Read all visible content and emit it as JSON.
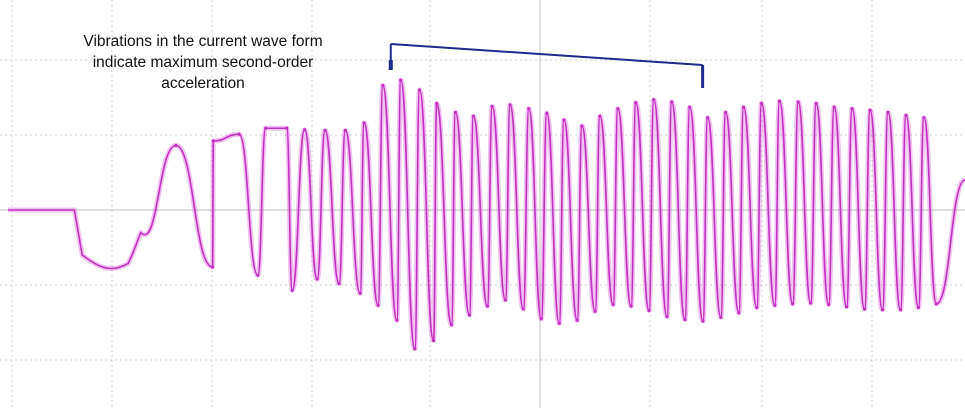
{
  "annotation": {
    "lines": [
      "Vibrations in the current wave form",
      "indicate maximum second-order",
      "acceleration"
    ]
  },
  "colors": {
    "trace": "#d64fd6",
    "trace_dark": "#c233c2",
    "grid": "#d0d0d0",
    "bracket": "#1e2a8c",
    "background": "#ffffff"
  },
  "chart_data": {
    "type": "line",
    "title": "",
    "xlabel": "",
    "ylabel": "",
    "grid": true,
    "grid_divisions": {
      "x": 12,
      "y": 5
    },
    "ylim": [
      -2.5,
      2.5
    ],
    "xlim": [
      0,
      12
    ],
    "series": [
      {
        "segments": [
          {
            "x_start": 0.0,
            "x_end": 0.85,
            "kind": "flat",
            "level": 0.0
          },
          {
            "x_start": 0.85,
            "x_end": 0.95,
            "kind": "step",
            "level": -0.6
          },
          {
            "x_start": 0.95,
            "x_end": 1.7,
            "kind": "sag",
            "min": -0.78
          }
        ],
        "peaks": [
          {
            "x": 2.15,
            "y": 0.86
          },
          {
            "x": 2.63,
            "y": 0.92
          },
          {
            "x": 2.96,
            "y": 1.01
          },
          {
            "x": 3.3,
            "y": 1.09
          },
          {
            "x": 3.57,
            "y": 1.09
          },
          {
            "x": 3.8,
            "y": 1.07
          },
          {
            "x": 4.06,
            "y": 1.06
          },
          {
            "x": 4.32,
            "y": 1.06
          },
          {
            "x": 4.56,
            "y": 1.16
          },
          {
            "x": 4.8,
            "y": 1.66
          },
          {
            "x": 5.03,
            "y": 1.73
          },
          {
            "x": 5.27,
            "y": 1.6
          },
          {
            "x": 5.49,
            "y": 1.42
          },
          {
            "x": 5.73,
            "y": 1.3
          },
          {
            "x": 5.96,
            "y": 1.25
          },
          {
            "x": 6.2,
            "y": 1.38
          },
          {
            "x": 6.43,
            "y": 1.4
          },
          {
            "x": 6.67,
            "y": 1.35
          },
          {
            "x": 6.9,
            "y": 1.29
          },
          {
            "x": 7.12,
            "y": 1.2
          },
          {
            "x": 7.35,
            "y": 1.12
          },
          {
            "x": 7.58,
            "y": 1.25
          },
          {
            "x": 7.81,
            "y": 1.35
          },
          {
            "x": 8.04,
            "y": 1.43
          },
          {
            "x": 8.27,
            "y": 1.47
          },
          {
            "x": 8.5,
            "y": 1.44
          },
          {
            "x": 8.73,
            "y": 1.37
          },
          {
            "x": 8.96,
            "y": 1.23
          },
          {
            "x": 9.19,
            "y": 1.3
          },
          {
            "x": 9.42,
            "y": 1.37
          },
          {
            "x": 9.65,
            "y": 1.42
          },
          {
            "x": 9.88,
            "y": 1.45
          },
          {
            "x": 10.12,
            "y": 1.44
          },
          {
            "x": 10.35,
            "y": 1.42
          },
          {
            "x": 10.58,
            "y": 1.37
          },
          {
            "x": 10.81,
            "y": 1.35
          },
          {
            "x": 11.04,
            "y": 1.33
          },
          {
            "x": 11.27,
            "y": 1.3
          },
          {
            "x": 11.5,
            "y": 1.26
          },
          {
            "x": 11.73,
            "y": 1.23
          }
        ],
        "troughs": [
          {
            "x": 2.62,
            "y": -0.76
          },
          {
            "x": 3.2,
            "y": -0.87
          },
          {
            "x": 3.64,
            "y": -1.07
          },
          {
            "x": 3.96,
            "y": -0.92
          },
          {
            "x": 4.24,
            "y": -0.98
          },
          {
            "x": 4.51,
            "y": -1.11
          },
          {
            "x": 4.74,
            "y": -1.27
          },
          {
            "x": 4.98,
            "y": -1.47
          },
          {
            "x": 5.21,
            "y": -1.85
          },
          {
            "x": 5.45,
            "y": -1.74
          },
          {
            "x": 5.68,
            "y": -1.53
          },
          {
            "x": 5.91,
            "y": -1.4
          },
          {
            "x": 6.14,
            "y": -1.28
          },
          {
            "x": 6.37,
            "y": -1.2
          },
          {
            "x": 6.6,
            "y": -1.32
          },
          {
            "x": 6.83,
            "y": -1.45
          },
          {
            "x": 7.06,
            "y": -1.51
          },
          {
            "x": 7.29,
            "y": -1.47
          },
          {
            "x": 7.52,
            "y": -1.35
          },
          {
            "x": 7.75,
            "y": -1.26
          },
          {
            "x": 7.98,
            "y": -1.28
          },
          {
            "x": 8.21,
            "y": -1.34
          },
          {
            "x": 8.44,
            "y": -1.42
          },
          {
            "x": 8.67,
            "y": -1.46
          },
          {
            "x": 8.9,
            "y": -1.48
          },
          {
            "x": 9.13,
            "y": -1.43
          },
          {
            "x": 9.36,
            "y": -1.37
          },
          {
            "x": 9.59,
            "y": -1.3
          },
          {
            "x": 9.82,
            "y": -1.27
          },
          {
            "x": 10.05,
            "y": -1.25
          },
          {
            "x": 10.28,
            "y": -1.24
          },
          {
            "x": 10.51,
            "y": -1.26
          },
          {
            "x": 10.74,
            "y": -1.29
          },
          {
            "x": 10.97,
            "y": -1.32
          },
          {
            "x": 11.2,
            "y": -1.33
          },
          {
            "x": 11.43,
            "y": -1.33
          },
          {
            "x": 11.66,
            "y": -1.3
          },
          {
            "x": 11.89,
            "y": -1.25
          }
        ]
      }
    ],
    "bracket": {
      "x_start": 5.03,
      "x_end": 8.96
    }
  }
}
